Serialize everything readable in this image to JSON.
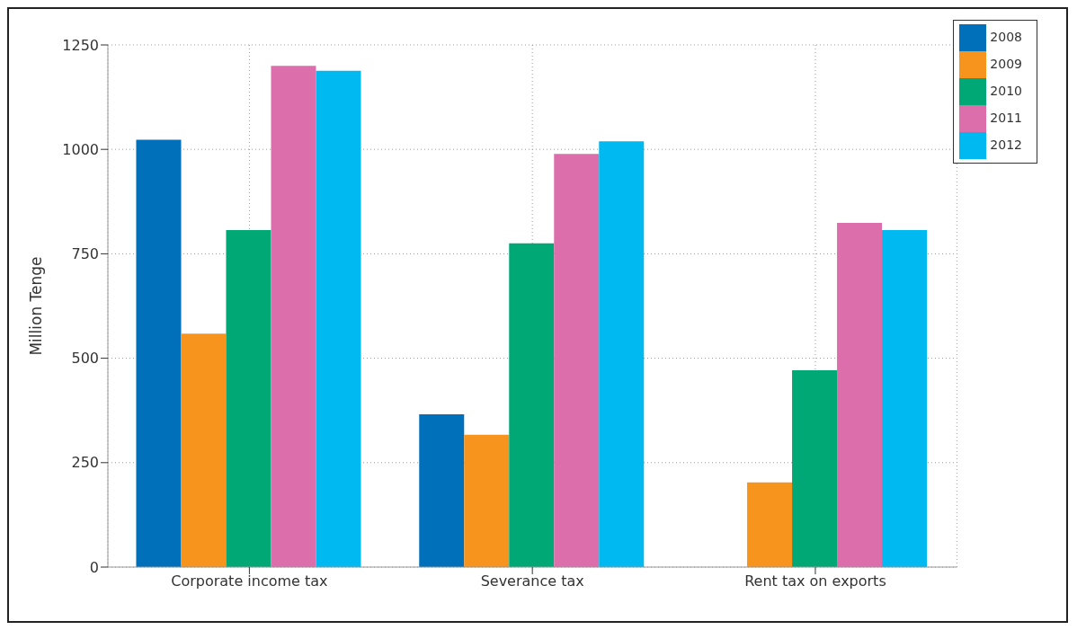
{
  "chart_data": {
    "type": "bar",
    "ylabel": "Million Tenge",
    "categories": [
      "Corporate income tax",
      "Severance tax",
      "Rent tax on exports"
    ],
    "series": [
      {
        "name": "2008",
        "color": "#0070bb",
        "values": [
          1023,
          366,
          null
        ]
      },
      {
        "name": "2009",
        "color": "#f7941d",
        "values": [
          559,
          317,
          203
        ]
      },
      {
        "name": "2010",
        "color": "#00a875",
        "values": [
          807,
          775,
          471
        ]
      },
      {
        "name": "2011",
        "color": "#dc6fab",
        "values": [
          1200,
          989,
          824
        ]
      },
      {
        "name": "2012",
        "color": "#00b9f1",
        "values": [
          1188,
          1019,
          807
        ]
      }
    ],
    "ylim": [
      0,
      1250
    ],
    "yticks": [
      0,
      250,
      500,
      750,
      1000,
      1250
    ],
    "grid": true,
    "legend": "top right"
  }
}
